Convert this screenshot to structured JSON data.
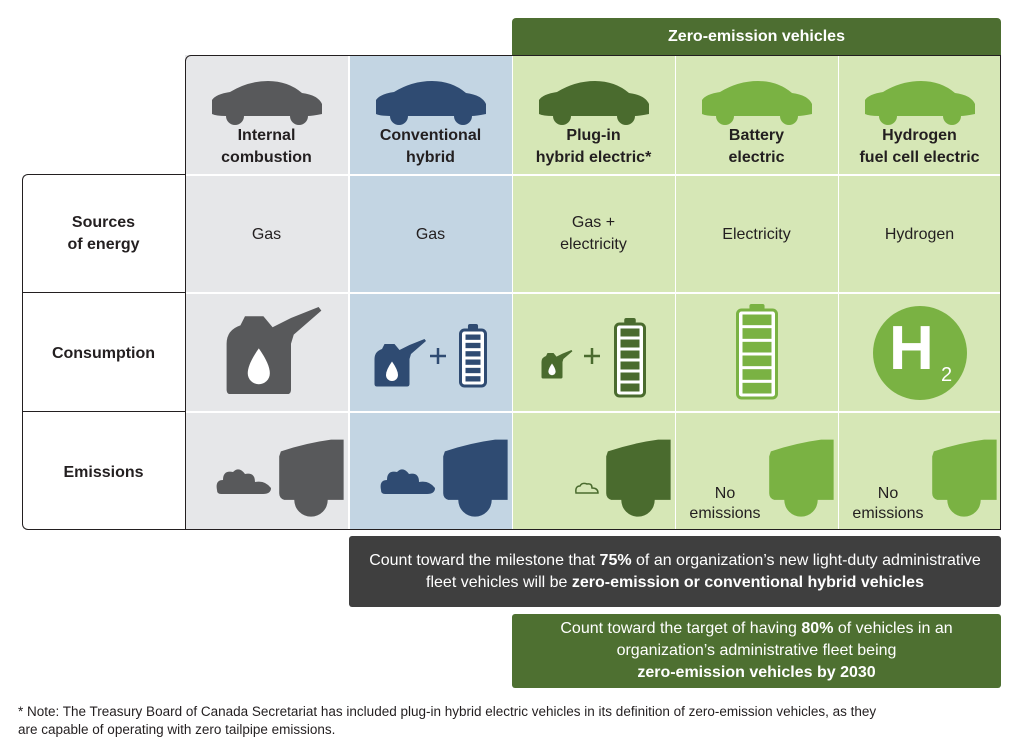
{
  "banner": {
    "label": "Zero-emission vehicles",
    "color": "#4d6e31"
  },
  "columns": [
    {
      "line1": "Internal",
      "line2": "combustion",
      "source": [
        "Gas"
      ],
      "color": "#58595b",
      "bg": "#e6e7e9"
    },
    {
      "line1": "Conventional",
      "line2": "hybrid",
      "source": [
        "Gas"
      ],
      "color": "#2f4b72",
      "bg": "#c3d5e3"
    },
    {
      "line1": "Plug-in",
      "line2": "hybrid electric*",
      "source": [
        "Gas +",
        "electricity"
      ],
      "color": "#4a6b2e",
      "bg": "#d6e7b6"
    },
    {
      "line1": "Battery",
      "line2": "electric",
      "source": [
        "Electricity"
      ],
      "color": "#7ab243",
      "bg": "#d6e7b6"
    },
    {
      "line1": "Hydrogen",
      "line2": "fuel cell electric",
      "source": [
        "Hydrogen"
      ],
      "color": "#7ab243",
      "bg": "#d6e7b6"
    }
  ],
  "rows": [
    {
      "line1": "Sources",
      "line2": "of energy"
    },
    {
      "line1": "Consumption",
      "line2": ""
    },
    {
      "line1": "Emissions",
      "line2": ""
    }
  ],
  "emissions": {
    "none_line1": "No",
    "none_line2": "emissions"
  },
  "h2": {
    "letter": "H",
    "sub": "2"
  },
  "milestone": {
    "p1": "Count toward the milestone that ",
    "b1": "75%",
    "p2": " of an organization’s new light-duty administrative",
    "p3": "fleet vehicles will be ",
    "b2": "zero-emission or conventional hybrid vehicles",
    "color": "#3f3f3f"
  },
  "target": {
    "p1": "Count toward the target of having ",
    "b1": "80%",
    "p2": " of vehicles in an",
    "p3": "organization’s administrative fleet being",
    "b2": "zero-emission vehicles by 2030",
    "color": "#4e7031"
  },
  "note": {
    "line1": "* Note: The Treasury Board of Canada Secretariat has included plug-in hybrid electric vehicles in its definition of zero-emission vehicles, as they",
    "line2": "are capable of operating with zero tailpipe emissions."
  }
}
